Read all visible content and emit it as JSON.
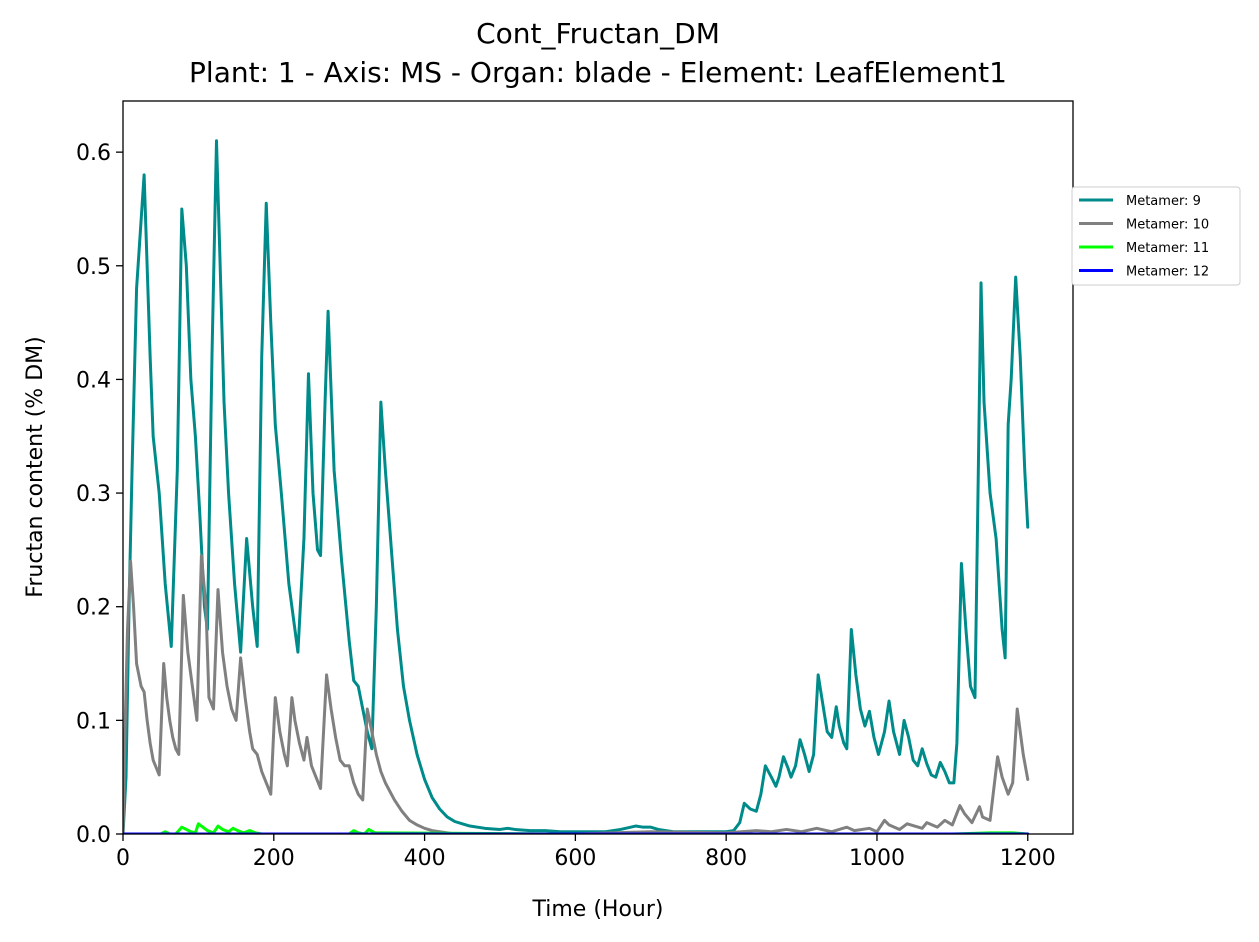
{
  "chart_data": {
    "type": "line",
    "title": "Cont_Fructan_DM",
    "subtitle": "Plant: 1 - Axis: MS - Organ: blade - Element: LeafElement1",
    "xlabel": "Time (Hour)",
    "ylabel": "Fructan content (% DM)",
    "xlim": [
      0,
      1260
    ],
    "ylim": [
      0,
      0.645
    ],
    "xticks": [
      0,
      200,
      400,
      600,
      800,
      1000,
      1200
    ],
    "yticks": [
      0.0,
      0.1,
      0.2,
      0.3,
      0.4,
      0.5,
      0.6
    ],
    "xtick_labels": [
      "0",
      "200",
      "400",
      "600",
      "800",
      "1000",
      "1200"
    ],
    "ytick_labels": [
      "0.0",
      "0.1",
      "0.2",
      "0.3",
      "0.4",
      "0.5",
      "0.6"
    ],
    "grid": false,
    "legend_position": "outside-right-top",
    "series": [
      {
        "name": "Metamer: 9",
        "color": "#008b8b",
        "x": [
          0,
          4,
          8,
          12,
          18,
          24,
          28,
          32,
          36,
          40,
          48,
          56,
          64,
          72,
          78,
          84,
          90,
          96,
          102,
          108,
          112,
          118,
          124,
          128,
          134,
          140,
          148,
          156,
          164,
          172,
          178,
          184,
          190,
          196,
          202,
          210,
          220,
          232,
          240,
          246,
          252,
          258,
          262,
          268,
          272,
          280,
          290,
          300,
          306,
          312,
          318,
          324,
          330,
          336,
          342,
          348,
          356,
          364,
          372,
          380,
          390,
          400,
          410,
          420,
          430,
          440,
          450,
          460,
          480,
          500,
          510,
          520,
          540,
          560,
          580,
          600,
          640,
          660,
          680,
          690,
          700,
          710,
          730,
          760,
          790,
          800,
          810,
          818,
          824,
          832,
          840,
          846,
          852,
          860,
          866,
          870,
          876,
          882,
          886,
          892,
          898,
          904,
          910,
          916,
          922,
          928,
          934,
          940,
          946,
          950,
          956,
          960,
          966,
          972,
          978,
          984,
          990,
          996,
          1002,
          1010,
          1016,
          1022,
          1030,
          1036,
          1042,
          1048,
          1054,
          1060,
          1066,
          1072,
          1078,
          1084,
          1090,
          1096,
          1102,
          1106,
          1112,
          1118,
          1124,
          1130,
          1134,
          1138,
          1142,
          1150,
          1158,
          1166,
          1170,
          1174,
          1178,
          1184,
          1190,
          1196,
          1200
        ],
        "values": [
          0.0,
          0.05,
          0.2,
          0.32,
          0.48,
          0.54,
          0.58,
          0.5,
          0.42,
          0.35,
          0.3,
          0.22,
          0.165,
          0.32,
          0.55,
          0.5,
          0.4,
          0.35,
          0.28,
          0.2,
          0.18,
          0.42,
          0.61,
          0.52,
          0.38,
          0.3,
          0.22,
          0.16,
          0.26,
          0.2,
          0.165,
          0.42,
          0.555,
          0.45,
          0.36,
          0.3,
          0.22,
          0.16,
          0.26,
          0.405,
          0.3,
          0.25,
          0.245,
          0.38,
          0.46,
          0.32,
          0.24,
          0.17,
          0.135,
          0.13,
          0.11,
          0.09,
          0.075,
          0.2,
          0.38,
          0.32,
          0.25,
          0.18,
          0.13,
          0.1,
          0.07,
          0.048,
          0.032,
          0.022,
          0.015,
          0.011,
          0.009,
          0.007,
          0.005,
          0.004,
          0.005,
          0.004,
          0.003,
          0.003,
          0.002,
          0.002,
          0.002,
          0.004,
          0.007,
          0.006,
          0.006,
          0.004,
          0.002,
          0.002,
          0.002,
          0.002,
          0.003,
          0.01,
          0.027,
          0.022,
          0.02,
          0.035,
          0.06,
          0.05,
          0.042,
          0.05,
          0.068,
          0.058,
          0.05,
          0.06,
          0.083,
          0.07,
          0.055,
          0.07,
          0.14,
          0.115,
          0.09,
          0.085,
          0.112,
          0.095,
          0.08,
          0.075,
          0.18,
          0.14,
          0.11,
          0.095,
          0.108,
          0.085,
          0.07,
          0.09,
          0.117,
          0.09,
          0.07,
          0.1,
          0.085,
          0.065,
          0.06,
          0.075,
          0.062,
          0.052,
          0.05,
          0.063,
          0.055,
          0.045,
          0.045,
          0.08,
          0.238,
          0.18,
          0.13,
          0.12,
          0.3,
          0.485,
          0.38,
          0.3,
          0.26,
          0.18,
          0.155,
          0.36,
          0.4,
          0.49,
          0.42,
          0.32,
          0.27
        ]
      },
      {
        "name": "Metamer: 10",
        "color": "#808080",
        "x": [
          0,
          3,
          6,
          10,
          14,
          18,
          24,
          28,
          32,
          36,
          40,
          48,
          54,
          58,
          62,
          66,
          70,
          74,
          80,
          86,
          92,
          98,
          104,
          110,
          114,
          120,
          126,
          132,
          138,
          144,
          150,
          156,
          162,
          168,
          172,
          178,
          184,
          190,
          196,
          202,
          208,
          214,
          218,
          224,
          228,
          234,
          240,
          244,
          250,
          256,
          262,
          266,
          270,
          276,
          282,
          288,
          294,
          300,
          306,
          312,
          318,
          324,
          330,
          336,
          342,
          348,
          360,
          370,
          380,
          390,
          400,
          410,
          420,
          430,
          440,
          460,
          500,
          600,
          700,
          800,
          840,
          860,
          880,
          900,
          920,
          940,
          960,
          970,
          990,
          1000,
          1010,
          1016,
          1030,
          1040,
          1060,
          1066,
          1080,
          1090,
          1100,
          1110,
          1116,
          1126,
          1136,
          1140,
          1150,
          1160,
          1166,
          1174,
          1180,
          1186,
          1194,
          1200
        ],
        "values": [
          0.0,
          0.1,
          0.18,
          0.24,
          0.2,
          0.15,
          0.13,
          0.125,
          0.1,
          0.08,
          0.065,
          0.052,
          0.15,
          0.12,
          0.1,
          0.085,
          0.075,
          0.07,
          0.21,
          0.16,
          0.13,
          0.1,
          0.245,
          0.2,
          0.12,
          0.11,
          0.215,
          0.16,
          0.13,
          0.11,
          0.1,
          0.155,
          0.12,
          0.09,
          0.075,
          0.07,
          0.055,
          0.045,
          0.035,
          0.12,
          0.09,
          0.07,
          0.06,
          0.12,
          0.1,
          0.08,
          0.065,
          0.085,
          0.06,
          0.05,
          0.04,
          0.09,
          0.14,
          0.11,
          0.085,
          0.065,
          0.06,
          0.06,
          0.045,
          0.035,
          0.03,
          0.11,
          0.09,
          0.07,
          0.055,
          0.045,
          0.03,
          0.02,
          0.012,
          0.008,
          0.005,
          0.003,
          0.002,
          0.001,
          0.0,
          0.0,
          0.0,
          0.0,
          0.002,
          0.001,
          0.003,
          0.002,
          0.004,
          0.002,
          0.005,
          0.002,
          0.006,
          0.003,
          0.005,
          0.002,
          0.012,
          0.008,
          0.004,
          0.009,
          0.005,
          0.01,
          0.006,
          0.012,
          0.008,
          0.025,
          0.018,
          0.01,
          0.024,
          0.015,
          0.012,
          0.068,
          0.05,
          0.035,
          0.045,
          0.11,
          0.07,
          0.048
        ]
      },
      {
        "name": "Metamer: 11",
        "color": "#00ff00",
        "x": [
          0,
          50,
          56,
          62,
          70,
          78,
          84,
          90,
          96,
          100,
          106,
          112,
          120,
          126,
          132,
          140,
          146,
          152,
          160,
          168,
          176,
          184,
          300,
          306,
          312,
          320,
          326,
          334,
          600,
          1100,
          1150,
          1180,
          1200
        ],
        "values": [
          0.0,
          0.0,
          0.002,
          0.0,
          0.0,
          0.006,
          0.004,
          0.002,
          0.001,
          0.009,
          0.006,
          0.003,
          0.001,
          0.007,
          0.004,
          0.002,
          0.005,
          0.003,
          0.001,
          0.003,
          0.001,
          0.0,
          0.0,
          0.003,
          0.001,
          0.0,
          0.004,
          0.001,
          0.0,
          0.0,
          0.001,
          0.001,
          0.0
        ]
      },
      {
        "name": "Metamer: 12",
        "color": "#0000ff",
        "x": [
          0,
          1200
        ],
        "values": [
          0.0,
          0.0
        ]
      }
    ]
  }
}
